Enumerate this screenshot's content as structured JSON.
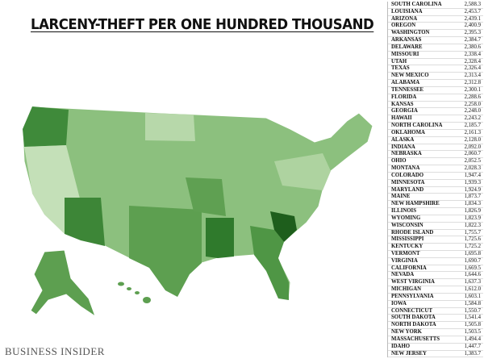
{
  "header": {
    "title": "LARCENY-THEFT PER ONE HUNDRED THOUSAND",
    "source": "BUSINESS INSIDER"
  },
  "table": {
    "rows": [
      [
        "SOUTH CAROLINA",
        "2,588.3"
      ],
      [
        "LOUISIANA",
        "2,453.7"
      ],
      [
        "ARIZONA",
        "2,439.1"
      ],
      [
        "OREGON",
        "2,400.9"
      ],
      [
        "WASHINGTON",
        "2,395.3"
      ],
      [
        "ARKANSAS",
        "2,384.7"
      ],
      [
        "DELAWARE",
        "2,380.6"
      ],
      [
        "MISSOURI",
        "2,338.4"
      ],
      [
        "UTAH",
        "2,328.4"
      ],
      [
        "TEXAS",
        "2,326.4"
      ],
      [
        "NEW MEXICO",
        "2,313.4"
      ],
      [
        "ALABAMA",
        "2,312.8"
      ],
      [
        "TENNESSEE",
        "2,300.1"
      ],
      [
        "FLORIDA",
        "2,288.6"
      ],
      [
        "KANSAS",
        "2,258.0"
      ],
      [
        "GEORGIA",
        "2,248.0"
      ],
      [
        "HAWAII",
        "2,243.2"
      ],
      [
        "NORTH CAROLINA",
        "2,185.7"
      ],
      [
        "OKLAHOMA",
        "2,161.3"
      ],
      [
        "ALASKA",
        "2,128.0"
      ],
      [
        "INDIANA",
        "2,092.0"
      ],
      [
        "NEBRASKA",
        "2,060.7"
      ],
      [
        "OHIO",
        "2,052.5"
      ],
      [
        "MONTANA",
        "2,028.3"
      ],
      [
        "COLORADO",
        "1,947.4"
      ],
      [
        "MINNESOTA",
        "1,939.3"
      ],
      [
        "MARYLAND",
        "1,924.9"
      ],
      [
        "MAINE",
        "1,873.7"
      ],
      [
        "NEW HAMPSHIRE",
        "1,834.3"
      ],
      [
        "ILLINOIS",
        "1,826.9"
      ],
      [
        "WYOMING",
        "1,823.9"
      ],
      [
        "WISCONSIN",
        "1,822.3"
      ],
      [
        "RHODE ISLAND",
        "1,755.7"
      ],
      [
        "MISSISSIPPI",
        "1,725.6"
      ],
      [
        "KENTUCKY",
        "1,725.2"
      ],
      [
        "VERMONT",
        "1,695.8"
      ],
      [
        "VIRGINIA",
        "1,690.7"
      ],
      [
        "CALIFORNIA",
        "1,669.5"
      ],
      [
        "NEVADA",
        "1,644.6"
      ],
      [
        "WEST VIRGINIA",
        "1,637.3"
      ],
      [
        "MICHIGAN",
        "1,612.0"
      ],
      [
        "PENNSYLVANIA",
        "1,603.1"
      ],
      [
        "IOWA",
        "1,584.8"
      ],
      [
        "CONNECTICUT",
        "1,550.7"
      ],
      [
        "SOUTH DAKOTA",
        "1,541.4"
      ],
      [
        "NORTH DAKOTA",
        "1,505.8"
      ],
      [
        "NEW YORK",
        "1,503.5"
      ],
      [
        "MASSACHUSETTS",
        "1,494.4"
      ],
      [
        "IDAHO",
        "1,447.7"
      ],
      [
        "NEW JERSEY",
        "1,383.7"
      ]
    ]
  }
}
